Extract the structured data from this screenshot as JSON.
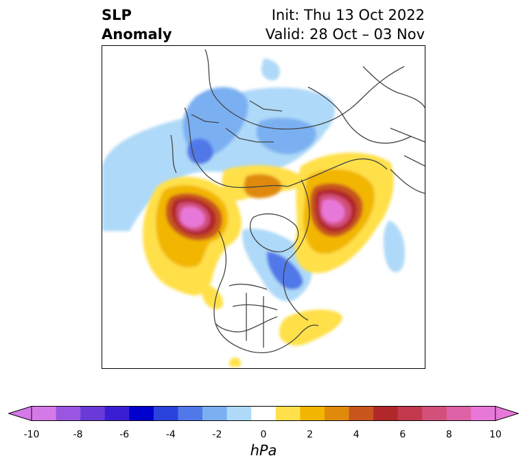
{
  "title": {
    "variable_line1": "SLP",
    "variable_line2": "Anomaly",
    "init": "Init: Thu 13 Oct 2022",
    "valid": "Valid: 28 Oct – 03 Nov"
  },
  "colorbar": {
    "units": "hPa",
    "ticks": [
      "-10",
      "-8",
      "-6",
      "-4",
      "-2",
      "0",
      "2",
      "4",
      "6",
      "8",
      "10"
    ],
    "colors": [
      "#d679e8",
      "#9a56e0",
      "#6a3ad8",
      "#3a1fd2",
      "#0000cc",
      "#2a43dc",
      "#5178e8",
      "#7ab0f2",
      "#aed9f8",
      "#ffffff",
      "#ffe04a",
      "#f2b600",
      "#e08a0c",
      "#c8561c",
      "#b0282a",
      "#c2394e",
      "#d2507a",
      "#de62a6",
      "#e878d8"
    ],
    "extend_low_color": "#d679e8",
    "extend_high_color": "#e878d8"
  },
  "map": {
    "projection": "north-polar-stereographic",
    "coastline_color": "#444444",
    "features": [
      {
        "name": "north-pacific-high-anomaly",
        "max": 10
      },
      {
        "name": "scandinavia-high-anomaly",
        "max": 10
      },
      {
        "name": "siberia-low-anomaly",
        "min": -4
      },
      {
        "name": "hudson-bay-low-anomaly",
        "min": -4
      },
      {
        "name": "gulf-coast-high-anomaly",
        "max": 2
      }
    ]
  }
}
